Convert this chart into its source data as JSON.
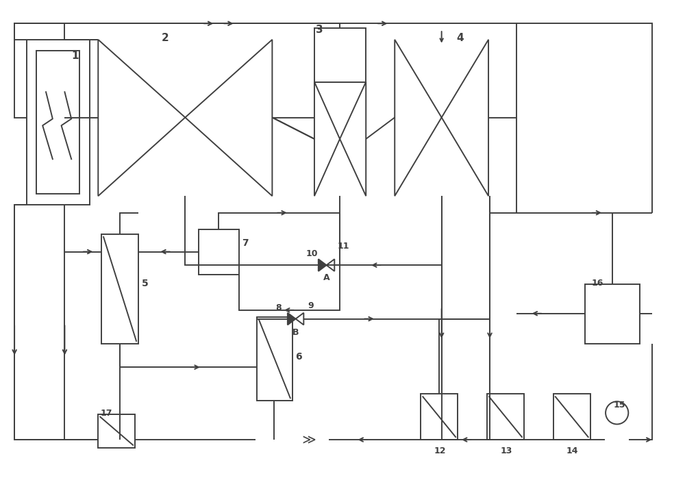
{
  "bg_color": "#ffffff",
  "lc": "#404040",
  "lw": 1.4,
  "figsize": [
    10.0,
    6.98
  ],
  "dpi": 100
}
